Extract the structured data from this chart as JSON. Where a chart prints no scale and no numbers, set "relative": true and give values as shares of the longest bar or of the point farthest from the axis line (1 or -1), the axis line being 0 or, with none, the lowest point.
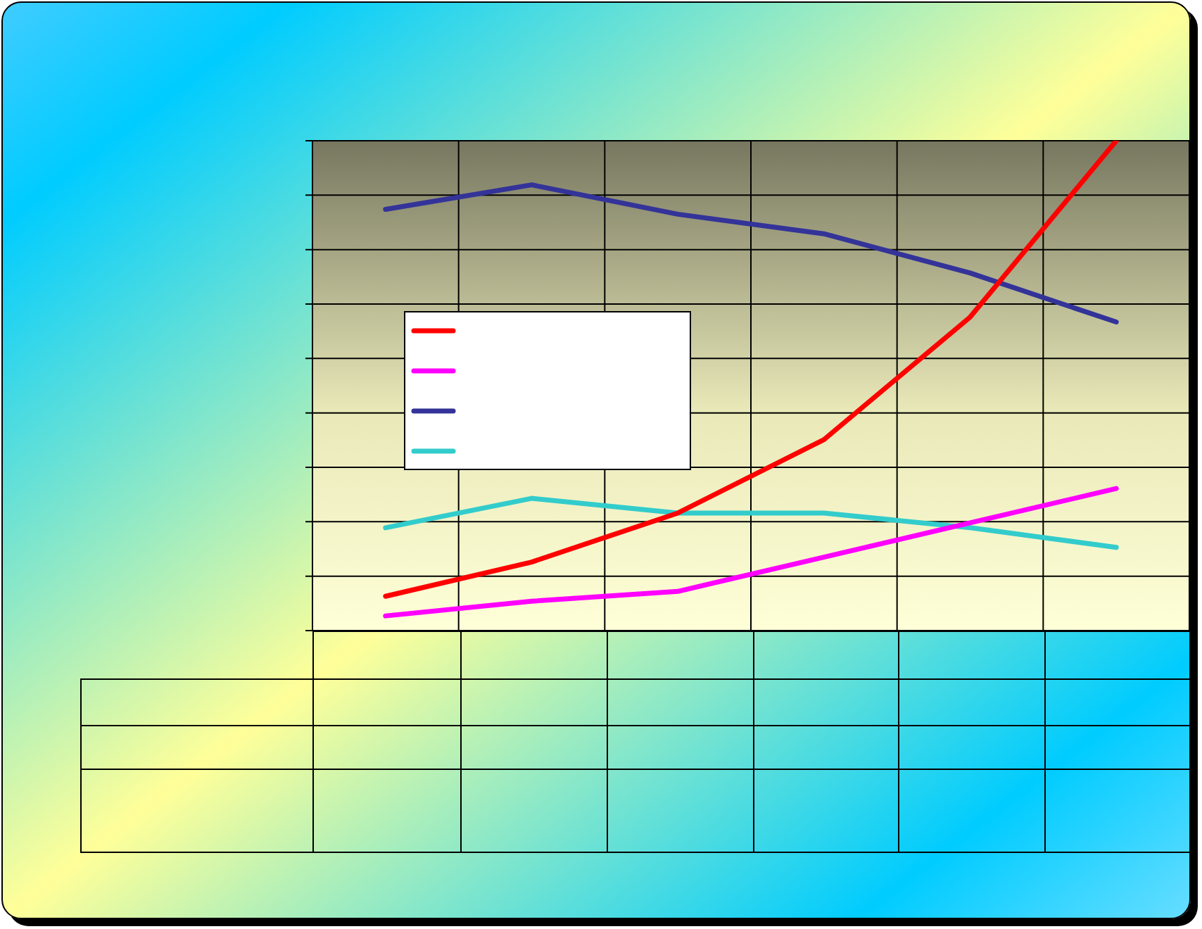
{
  "chart_data": {
    "type": "line",
    "relative": true,
    "categories": [
      null,
      null,
      null,
      null,
      null,
      null
    ],
    "series": [
      {
        "color": "#ff0000",
        "values": [
          0.07,
          0.14,
          0.24,
          0.39,
          0.64,
          1
        ]
      },
      {
        "color": "#ff00ff",
        "values": [
          0.03,
          0.06,
          0.08,
          0.15,
          0.22,
          0.29
        ]
      },
      {
        "color": "#333399",
        "values": [
          0.86,
          0.91,
          0.85,
          0.81,
          0.73,
          0.63
        ]
      },
      {
        "color": "#33cccc",
        "values": [
          0.21,
          0.27,
          0.24,
          0.24,
          0.21,
          0.17
        ]
      }
    ],
    "grid": true,
    "marker": "none",
    "line_style": "solid"
  }
}
